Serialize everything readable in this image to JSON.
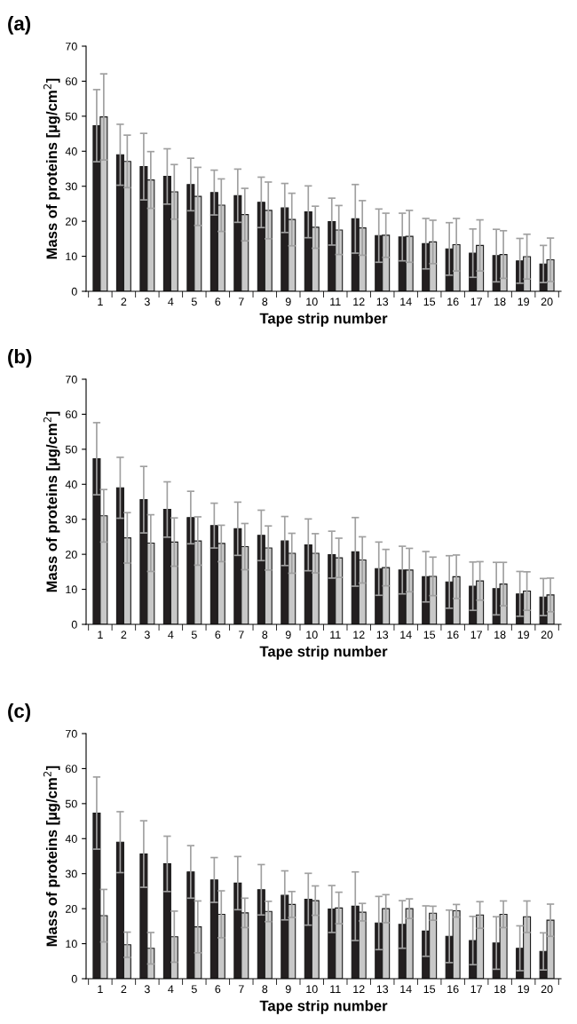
{
  "chart_data": [
    {
      "type": "bar",
      "title": "(a)",
      "xlabel": "Tape strip number",
      "ylabel": "Mass of proteins [µg/cm$^{2}$]",
      "categories": [
        "1",
        "2",
        "3",
        "4",
        "5",
        "6",
        "7",
        "8",
        "9",
        "10",
        "11",
        "12",
        "13",
        "14",
        "15",
        "16",
        "17",
        "18",
        "19",
        "20"
      ],
      "ylim": [
        0,
        70
      ],
      "yticks": [
        0,
        10,
        20,
        30,
        40,
        50,
        60,
        70
      ],
      "grid": false,
      "legend": false,
      "series": [
        {
          "color": "#231f20",
          "values": [
            47.3,
            39,
            35.6,
            32.8,
            30.5,
            28.2,
            27.3,
            25.4,
            23.8,
            22.7,
            19.9,
            20.7,
            15.9,
            15.5,
            13.6,
            12.1,
            10.9,
            10.2,
            8.7,
            7.8
          ],
          "errors": [
            10.3,
            8.7,
            9.5,
            7.9,
            7.5,
            6.4,
            7.6,
            7.2,
            7,
            7.4,
            6.7,
            9.8,
            7.6,
            6.8,
            7.2,
            7.5,
            6.9,
            7.5,
            6.4,
            5.3
          ]
        },
        {
          "color": "#c8c8c8",
          "values": [
            49.8,
            37.1,
            31.8,
            28.4,
            27.1,
            24.6,
            21.9,
            23.1,
            20.5,
            18.3,
            17.5,
            18.1,
            16,
            15.7,
            14.1,
            13.3,
            13.1,
            10.5,
            9.9,
            9
          ],
          "errors": [
            12.3,
            7.5,
            8.1,
            7.8,
            8.3,
            7.5,
            7.5,
            8.1,
            7.5,
            6,
            7,
            7.8,
            6.3,
            7.4,
            6.2,
            7.5,
            7.3,
            6.8,
            6.4,
            6.2
          ]
        }
      ]
    },
    {
      "type": "bar",
      "title": "(b)",
      "xlabel": "Tape strip number",
      "ylabel": "Mass of proteins [µg/cm$^{2}$]",
      "categories": [
        "1",
        "2",
        "3",
        "4",
        "5",
        "6",
        "7",
        "8",
        "9",
        "10",
        "11",
        "12",
        "13",
        "14",
        "15",
        "16",
        "17",
        "18",
        "19",
        "20"
      ],
      "ylim": [
        0,
        70
      ],
      "yticks": [
        0,
        10,
        20,
        30,
        40,
        50,
        60,
        70
      ],
      "grid": false,
      "legend": false,
      "series": [
        {
          "color": "#231f20",
          "values": [
            47.3,
            39,
            35.6,
            32.8,
            30.5,
            28.2,
            27.3,
            25.4,
            23.8,
            22.7,
            19.9,
            20.7,
            15.9,
            15.5,
            13.6,
            12.1,
            10.9,
            10.2,
            8.7,
            7.8
          ],
          "errors": [
            10.3,
            8.7,
            9.5,
            7.9,
            7.5,
            6.4,
            7.6,
            7.2,
            7,
            7.4,
            6.7,
            9.8,
            7.6,
            6.8,
            7.2,
            7.5,
            6.9,
            7.5,
            6.4,
            5.3
          ]
        },
        {
          "color": "#c8c8c8",
          "values": [
            31,
            24.7,
            23.2,
            23.5,
            23.8,
            23.1,
            22.2,
            21.8,
            20.3,
            20.3,
            19,
            18.4,
            16.2,
            15.5,
            13.7,
            13.6,
            12.4,
            11.5,
            9.5,
            8.4
          ],
          "errors": [
            7.5,
            7.2,
            8.1,
            6.9,
            6.9,
            5.2,
            6.6,
            6.3,
            5.7,
            5.6,
            5.6,
            6.6,
            5.2,
            6.2,
            5.5,
            6.2,
            5.5,
            6.2,
            5.5,
            4.8
          ]
        }
      ]
    },
    {
      "type": "bar",
      "title": "(c)",
      "xlabel": "Tape strip number",
      "ylabel": "Mass of proteins [µg/cm$^{2}$]",
      "categories": [
        "1",
        "2",
        "3",
        "4",
        "5",
        "6",
        "7",
        "8",
        "9",
        "10",
        "11",
        "12",
        "13",
        "14",
        "15",
        "16",
        "17",
        "18",
        "19",
        "20"
      ],
      "ylim": [
        0,
        70
      ],
      "yticks": [
        0,
        10,
        20,
        30,
        40,
        50,
        60,
        70
      ],
      "grid": false,
      "legend": false,
      "series": [
        {
          "color": "#231f20",
          "values": [
            47.3,
            39,
            35.6,
            32.8,
            30.5,
            28.2,
            27.3,
            25.4,
            23.8,
            22.7,
            19.9,
            20.7,
            15.9,
            15.5,
            13.6,
            12.1,
            10.9,
            10.2,
            8.7,
            7.8
          ],
          "errors": [
            10.3,
            8.7,
            9.5,
            7.9,
            7.5,
            6.4,
            7.6,
            7.2,
            7,
            7.4,
            6.7,
            9.8,
            7.6,
            6.8,
            7.2,
            7.5,
            6.9,
            7.5,
            6.4,
            5.3
          ]
        },
        {
          "color": "#c8c8c8",
          "values": [
            18,
            9.7,
            8.7,
            12,
            14.8,
            18.4,
            18.8,
            19.2,
            21.2,
            22.3,
            20.2,
            19,
            20,
            20,
            18.7,
            19.4,
            18.2,
            18.4,
            17.7,
            16.7
          ],
          "errors": [
            7.5,
            3.6,
            4.5,
            7.3,
            7.4,
            6.7,
            4.2,
            2.9,
            3.7,
            4.2,
            4.5,
            2.5,
            4,
            2.8,
            2,
            1.8,
            3.8,
            3.8,
            4.5,
            4.6
          ]
        }
      ]
    }
  ]
}
